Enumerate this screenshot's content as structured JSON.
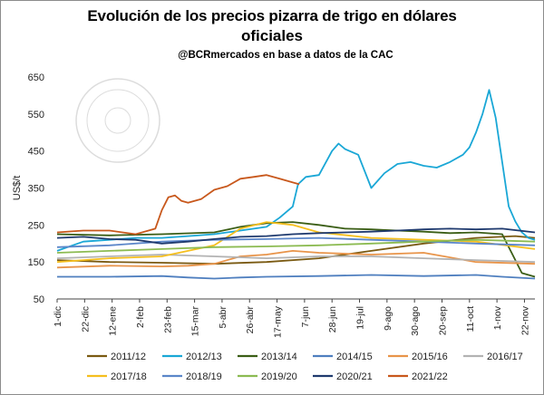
{
  "chart_data": {
    "type": "line",
    "title": "Evolución de los precios pizarra de trigo en dólares",
    "title_line2": "oficiales",
    "subtitle": "@BCRmercados  en base a datos de la CAC",
    "ylabel": "US$/t",
    "ylim": [
      50,
      650
    ],
    "yticks": [
      50,
      150,
      250,
      350,
      450,
      550,
      650
    ],
    "x_tick_labels": [
      "1-dic",
      "22-dic",
      "12-ene",
      "2-feb",
      "23-feb",
      "15-mar",
      "5-abr",
      "26-abr",
      "17-may",
      "7-jun",
      "28-jun",
      "19-jul",
      "9-ago",
      "30-ago",
      "20-sep",
      "11-oct",
      "1-nov",
      "22-nov"
    ],
    "x_day_range": [
      0,
      365
    ],
    "grid": false,
    "legend_position": "bottom",
    "series": [
      {
        "name": "2011/12",
        "color": "#7a5a12",
        "x": [
          0,
          40,
          80,
          120,
          160,
          200,
          240,
          280,
          320,
          350,
          365
        ],
        "y": [
          155,
          150,
          148,
          145,
          150,
          160,
          180,
          200,
          215,
          220,
          215
        ]
      },
      {
        "name": "2012/13",
        "color": "#1aa7d6",
        "x": [
          0,
          20,
          40,
          60,
          80,
          100,
          120,
          140,
          160,
          170,
          180,
          184,
          190,
          200,
          210,
          215,
          220,
          230,
          240,
          250,
          260,
          270,
          280,
          290,
          300,
          310,
          315,
          320,
          325,
          330,
          335,
          340,
          345,
          350,
          355,
          360,
          365
        ],
        "y": [
          180,
          205,
          210,
          215,
          215,
          220,
          225,
          235,
          245,
          270,
          300,
          360,
          380,
          385,
          450,
          470,
          455,
          440,
          350,
          390,
          415,
          420,
          410,
          405,
          420,
          440,
          460,
          500,
          550,
          615,
          540,
          420,
          300,
          260,
          230,
          215,
          210
        ]
      },
      {
        "name": "2013/14",
        "color": "#3b5e16",
        "x": [
          0,
          40,
          80,
          120,
          140,
          160,
          180,
          200,
          220,
          240,
          260,
          280,
          300,
          320,
          340,
          355,
          365
        ],
        "y": [
          225,
          222,
          225,
          230,
          245,
          255,
          258,
          250,
          240,
          238,
          235,
          232,
          228,
          230,
          225,
          120,
          110
        ]
      },
      {
        "name": "2014/15",
        "color": "#4f7fbf",
        "x": [
          0,
          40,
          80,
          100,
          120,
          140,
          160,
          200,
          240,
          280,
          320,
          340,
          365
        ],
        "y": [
          110,
          110,
          112,
          108,
          105,
          108,
          110,
          112,
          115,
          112,
          115,
          110,
          105
        ]
      },
      {
        "name": "2015/16",
        "color": "#e8944a",
        "x": [
          0,
          40,
          80,
          100,
          120,
          140,
          160,
          180,
          200,
          240,
          280,
          320,
          365
        ],
        "y": [
          135,
          140,
          138,
          140,
          145,
          165,
          170,
          180,
          175,
          170,
          175,
          150,
          145
        ]
      },
      {
        "name": "2016/17",
        "color": "#b3b3b3",
        "x": [
          0,
          40,
          80,
          120,
          160,
          200,
          240,
          280,
          320,
          365
        ],
        "y": [
          160,
          165,
          170,
          165,
          160,
          165,
          165,
          160,
          155,
          150
        ]
      },
      {
        "name": "2017/18",
        "color": "#f5bf1e",
        "x": [
          0,
          40,
          80,
          120,
          140,
          160,
          180,
          200,
          240,
          280,
          320,
          365
        ],
        "y": [
          150,
          160,
          165,
          195,
          240,
          258,
          250,
          230,
          215,
          210,
          205,
          185
        ]
      },
      {
        "name": "2018/19",
        "color": "#5b86c9",
        "x": [
          0,
          40,
          80,
          120,
          160,
          200,
          240,
          280,
          320,
          365
        ],
        "y": [
          190,
          195,
          205,
          210,
          212,
          215,
          210,
          205,
          200,
          195
        ]
      },
      {
        "name": "2019/20",
        "color": "#8cbb52",
        "x": [
          0,
          40,
          80,
          120,
          160,
          200,
          240,
          280,
          320,
          365
        ],
        "y": [
          175,
          180,
          185,
          190,
          192,
          195,
          200,
          205,
          210,
          205
        ]
      },
      {
        "name": "2020/21",
        "color": "#1f3a6e",
        "x": [
          0,
          20,
          40,
          60,
          80,
          100,
          120,
          140,
          160,
          180,
          200,
          220,
          240,
          260,
          280,
          300,
          320,
          340,
          365
        ],
        "y": [
          215,
          218,
          212,
          210,
          200,
          205,
          212,
          218,
          220,
          225,
          228,
          230,
          232,
          235,
          238,
          240,
          238,
          240,
          230
        ]
      },
      {
        "name": "2021/22",
        "color": "#c8581c",
        "x": [
          0,
          20,
          40,
          60,
          75,
          80,
          85,
          90,
          95,
          100,
          110,
          120,
          130,
          140,
          150,
          160,
          170,
          180,
          185
        ],
        "y": [
          230,
          235,
          235,
          225,
          240,
          290,
          325,
          330,
          315,
          310,
          320,
          345,
          355,
          375,
          380,
          385,
          375,
          365,
          360
        ]
      }
    ]
  }
}
